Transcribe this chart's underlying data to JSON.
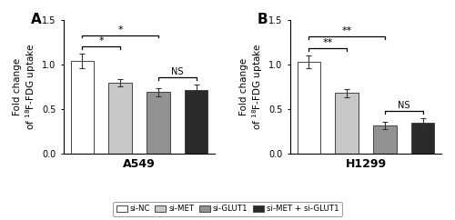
{
  "panel_A": {
    "title": "A549",
    "label": "A",
    "bars": [
      1.04,
      0.8,
      0.69,
      0.72
    ],
    "errors": [
      0.08,
      0.04,
      0.05,
      0.06
    ],
    "colors": [
      "#ffffff",
      "#c8c8c8",
      "#929292",
      "#2a2a2a"
    ]
  },
  "panel_B": {
    "title": "H1299",
    "label": "B",
    "bars": [
      1.03,
      0.68,
      0.32,
      0.35
    ],
    "errors": [
      0.07,
      0.05,
      0.04,
      0.05
    ],
    "colors": [
      "#ffffff",
      "#c8c8c8",
      "#929292",
      "#2a2a2a"
    ]
  },
  "ylim": [
    0,
    1.5
  ],
  "yticks": [
    0.0,
    0.5,
    1.0,
    1.5
  ],
  "ylabel": "Fold change\nof $^{18}$F-FDG uptake",
  "legend_labels": [
    "si-NC",
    "si-MET",
    "si-GLUT1",
    "si-MET + si-GLUT1"
  ],
  "legend_colors": [
    "#ffffff",
    "#c8c8c8",
    "#929292",
    "#2a2a2a"
  ],
  "bar_width": 0.6,
  "bar_edge_color": "#444444",
  "error_cap_size": 2.5,
  "sig_A": {
    "star1": "*",
    "star2": "*"
  },
  "sig_B": {
    "star1": "**",
    "star2": "**"
  },
  "background_color": "#ffffff"
}
